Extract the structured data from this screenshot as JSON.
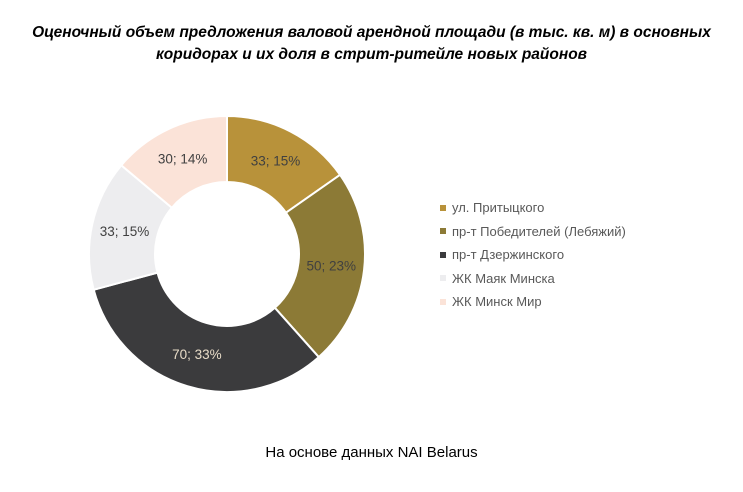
{
  "chart_data": {
    "type": "pie",
    "title": "Оценочный объем предложения валовой арендной площади (в тыс. кв. м) в основных коридорах и их доля в стрит-ритейле новых районов",
    "slices": [
      {
        "name": "ул. Притыцкого",
        "value": 33,
        "percent": 15,
        "label": "33; 15%",
        "color": "#B8923A",
        "label_color": "#404040"
      },
      {
        "name": "пр-т Победителей (Лебяжий)",
        "value": 50,
        "percent": 23,
        "label": "50; 23%",
        "color": "#8C7A36",
        "label_color": "#404040"
      },
      {
        "name": "пр-т Дзержинского",
        "value": 70,
        "percent": 33,
        "label": "70; 33%",
        "color": "#3B3B3D",
        "label_color": "#E8DCC8"
      },
      {
        "name": "ЖК Маяк Минска",
        "value": 33,
        "percent": 15,
        "label": "33; 15%",
        "color": "#EDEDEF",
        "label_color": "#404040"
      },
      {
        "name": "ЖК Минск Мир",
        "value": 30,
        "percent": 14,
        "label": "30; 14%",
        "color": "#FBE3D8",
        "label_color": "#404040"
      }
    ],
    "legend_position": "right"
  },
  "source_text": "На основе данных NAI Belarus"
}
